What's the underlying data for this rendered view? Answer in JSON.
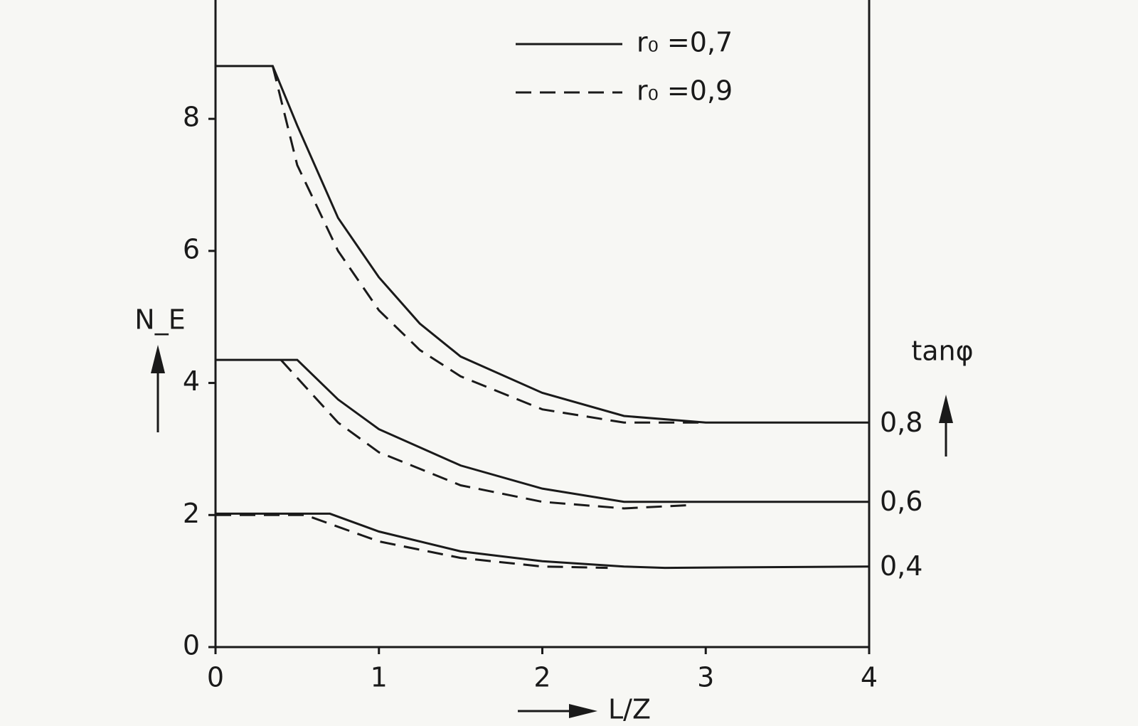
{
  "chart_data": {
    "type": "line",
    "y_label": "N_E",
    "y2_label": "tanφ",
    "x_label": "L/Z",
    "xlim": [
      0,
      4
    ],
    "xticks": [
      0,
      1,
      2,
      3,
      4
    ],
    "ylim": [
      0,
      9.8
    ],
    "yticks": [
      0,
      2,
      4,
      6,
      8
    ],
    "color": "#1a1a1a",
    "legend": [
      {
        "label": "r₀ =0,7",
        "dashed": false
      },
      {
        "label": "r₀ =0,9",
        "dashed": true
      }
    ],
    "series": [
      {
        "dashed": false,
        "end_label": "0,8",
        "x": [
          0,
          0.35,
          0.5,
          0.75,
          1,
          1.25,
          1.5,
          2,
          2.5,
          3,
          4
        ],
        "values": [
          8.8,
          8.8,
          7.9,
          6.5,
          5.6,
          4.9,
          4.4,
          3.85,
          3.5,
          3.4,
          3.4
        ]
      },
      {
        "dashed": true,
        "x": [
          0.35,
          0.5,
          0.75,
          1,
          1.25,
          1.5,
          2,
          2.5,
          3
        ],
        "values": [
          8.8,
          7.3,
          6.0,
          5.1,
          4.5,
          4.1,
          3.6,
          3.4,
          3.4
        ]
      },
      {
        "dashed": false,
        "end_label": "0,6",
        "x": [
          0,
          0.5,
          0.75,
          1,
          1.5,
          2,
          2.5,
          3,
          4
        ],
        "values": [
          4.35,
          4.35,
          3.75,
          3.3,
          2.75,
          2.4,
          2.2,
          2.2,
          2.2
        ]
      },
      {
        "dashed": true,
        "x": [
          0.4,
          0.75,
          1,
          1.5,
          2,
          2.5,
          2.9
        ],
        "values": [
          4.35,
          3.4,
          2.95,
          2.45,
          2.2,
          2.1,
          2.15
        ]
      },
      {
        "dashed": false,
        "end_label": "0,4",
        "x": [
          0,
          0.7,
          1,
          1.5,
          2,
          2.5,
          2.75,
          4
        ],
        "values": [
          2.02,
          2.02,
          1.75,
          1.45,
          1.3,
          1.22,
          1.2,
          1.22
        ]
      },
      {
        "dashed": true,
        "x": [
          0,
          0.55,
          1,
          1.5,
          2,
          2.4
        ],
        "values": [
          2.0,
          2.0,
          1.6,
          1.35,
          1.22,
          1.2
        ]
      }
    ]
  }
}
